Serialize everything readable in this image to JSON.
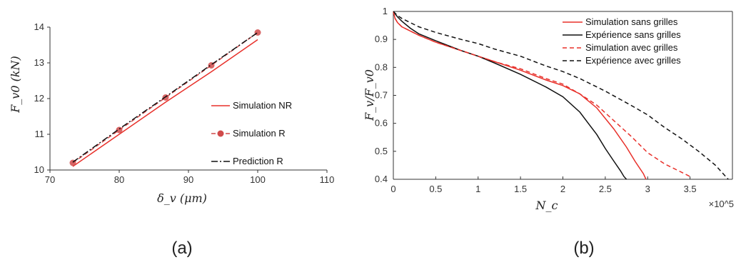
{
  "figure": {
    "panel_a_label": "(a)",
    "panel_b_label": "(b)"
  },
  "chart_data": [
    {
      "type": "line",
      "xlabel": "δ_v (μm)",
      "ylabel": "F_v0 (kN)",
      "xlim": [
        70,
        110
      ],
      "ylim": [
        10,
        14
      ],
      "xticks": [
        "70",
        "80",
        "90",
        "100",
        "110"
      ],
      "yticks": [
        "10",
        "11",
        "12",
        "13",
        "14"
      ],
      "grid": false,
      "legend_position": "right",
      "series": [
        {
          "name": "Simulation NR",
          "color": "#e8302a",
          "style": "solid",
          "marker": "none",
          "x": [
            73.3,
            80,
            86.7,
            93.3,
            100
          ],
          "y": [
            10.1,
            11.0,
            11.9,
            12.75,
            13.65
          ]
        },
        {
          "name": "Simulation R",
          "color": "#d04a4a",
          "style": "dashed",
          "marker": "circle",
          "x": [
            73.3,
            80,
            86.7,
            93.3,
            100
          ],
          "y": [
            10.2,
            11.12,
            12.03,
            12.93,
            13.85
          ]
        },
        {
          "name": "Prediction R",
          "color": "#111111",
          "style": "dashdot",
          "marker": "none",
          "x": [
            73.3,
            80,
            86.7,
            93.3,
            100
          ],
          "y": [
            10.22,
            11.15,
            12.05,
            12.95,
            13.85
          ]
        }
      ]
    },
    {
      "type": "line",
      "xlabel": "N_c",
      "ylabel": "F_v/F_v0",
      "x_multiplier": "×10^5",
      "xlim": [
        0,
        4
      ],
      "ylim": [
        0.4,
        1
      ],
      "xticks": [
        "0",
        "0.5",
        "1",
        "1.5",
        "2",
        "2.5",
        "3",
        "3.5"
      ],
      "yticks": [
        "0.4",
        "0.5",
        "0.6",
        "0.7",
        "0.8",
        "0.9",
        "1"
      ],
      "grid": false,
      "legend_position": "top-right",
      "series": [
        {
          "name": "Simulation sans grilles",
          "color": "#e8302a",
          "style": "solid",
          "x": [
            0,
            0.02,
            0.05,
            0.1,
            0.2,
            0.3,
            0.5,
            0.8,
            1.0,
            1.2,
            1.5,
            1.8,
            2.0,
            2.2,
            2.4,
            2.6,
            2.75,
            2.85,
            2.95,
            2.98
          ],
          "y": [
            1.0,
            0.975,
            0.96,
            0.945,
            0.93,
            0.915,
            0.89,
            0.86,
            0.84,
            0.82,
            0.79,
            0.755,
            0.735,
            0.705,
            0.655,
            0.58,
            0.515,
            0.465,
            0.42,
            0.4
          ]
        },
        {
          "name": "Expérience sans grilles",
          "color": "#111111",
          "style": "solid",
          "x": [
            0,
            0.05,
            0.1,
            0.2,
            0.3,
            0.5,
            0.8,
            1.0,
            1.2,
            1.5,
            1.8,
            2.0,
            2.2,
            2.3,
            2.4,
            2.5,
            2.6,
            2.68,
            2.72,
            2.75
          ],
          "y": [
            1.0,
            0.98,
            0.965,
            0.94,
            0.92,
            0.895,
            0.86,
            0.84,
            0.815,
            0.775,
            0.73,
            0.695,
            0.64,
            0.6,
            0.56,
            0.51,
            0.465,
            0.43,
            0.41,
            0.4
          ]
        },
        {
          "name": "Simulation avec grilles",
          "color": "#e8302a",
          "style": "dashed",
          "x": [
            0,
            0.02,
            0.05,
            0.1,
            0.2,
            0.3,
            0.5,
            0.8,
            1.0,
            1.2,
            1.5,
            1.8,
            2.0,
            2.2,
            2.4,
            2.6,
            2.8,
            3.0,
            3.2,
            3.4,
            3.5
          ],
          "y": [
            1.0,
            0.975,
            0.96,
            0.945,
            0.93,
            0.915,
            0.89,
            0.86,
            0.84,
            0.82,
            0.795,
            0.76,
            0.74,
            0.705,
            0.665,
            0.61,
            0.555,
            0.495,
            0.455,
            0.425,
            0.41
          ]
        },
        {
          "name": "Expérience avec grilles",
          "color": "#111111",
          "style": "dashed",
          "x": [
            0,
            0.05,
            0.1,
            0.2,
            0.3,
            0.5,
            0.8,
            1.0,
            1.2,
            1.5,
            1.8,
            2.0,
            2.2,
            2.5,
            2.8,
            3.0,
            3.2,
            3.4,
            3.6,
            3.8,
            3.95
          ],
          "y": [
            1.0,
            0.985,
            0.975,
            0.96,
            0.945,
            0.925,
            0.9,
            0.885,
            0.865,
            0.84,
            0.805,
            0.785,
            0.76,
            0.715,
            0.665,
            0.63,
            0.585,
            0.545,
            0.5,
            0.45,
            0.4
          ]
        }
      ]
    }
  ]
}
